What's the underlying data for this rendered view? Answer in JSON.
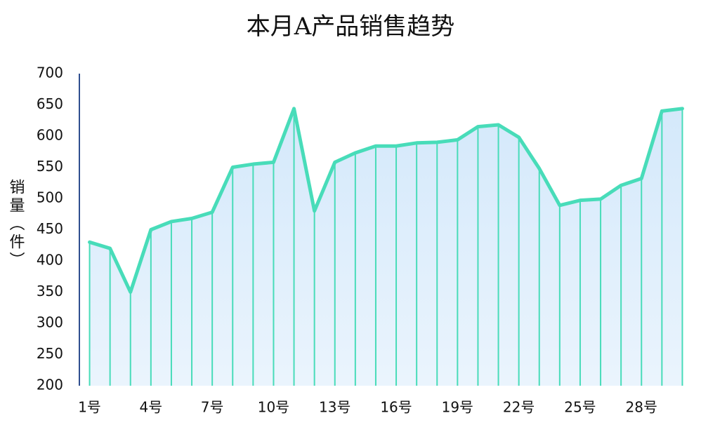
{
  "chart_data": {
    "type": "line",
    "title": "本月A产品销售趋势",
    "y_label": "销量（件）",
    "categories": [
      "1号",
      null,
      null,
      "4号",
      null,
      null,
      "7号",
      null,
      null,
      "10号",
      null,
      null,
      "13号",
      null,
      null,
      "16号",
      null,
      null,
      "19号",
      null,
      null,
      "22号",
      null,
      null,
      "25号",
      null,
      null,
      "28号",
      null,
      null
    ],
    "values": [
      430,
      420,
      350,
      450,
      463,
      468,
      478,
      550,
      555,
      558,
      644,
      480,
      558,
      573,
      584,
      584,
      589,
      590,
      594,
      615,
      618,
      598,
      548,
      489,
      497,
      499,
      521,
      532,
      640,
      644
    ],
    "color": "#48dcb9",
    "ylim": [
      200,
      700
    ],
    "yticks": [
      200,
      250,
      300,
      350,
      400,
      450,
      500,
      550,
      600,
      650,
      700
    ],
    "grid": false
  }
}
